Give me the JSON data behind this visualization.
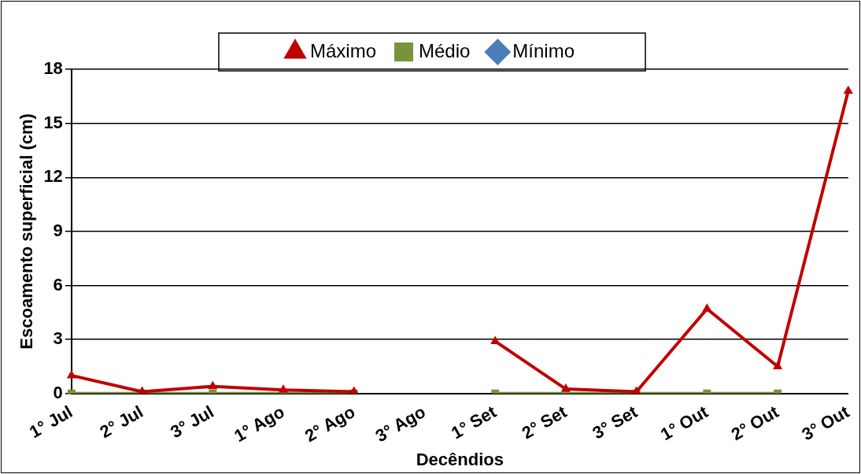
{
  "chart_data": {
    "type": "line",
    "xlabel": "Decêndios",
    "ylabel": "Escoamento superficial (cm)",
    "categories": [
      "1° Jul",
      "2° Jul",
      "3° Jul",
      "1° Ago",
      "2° Ago",
      "3° Ago",
      "1° Set",
      "2° Set",
      "3° Set",
      "1° Out",
      "2° Out",
      "3° Out"
    ],
    "series": [
      {
        "name": "Mínimo",
        "color": "#4a7ebb",
        "marker": "diamond",
        "values": [
          null,
          null,
          null,
          null,
          null,
          null,
          null,
          null,
          null,
          null,
          null,
          null
        ]
      },
      {
        "name": "Médio",
        "color": "#77933c",
        "marker": "square",
        "values": [
          0,
          0,
          0,
          0,
          0,
          null,
          0,
          0,
          0,
          0,
          0,
          null
        ]
      },
      {
        "name": "Máximo",
        "color": "#c00000",
        "marker": "triangle",
        "values": [
          1.0,
          0.1,
          0.4,
          0.2,
          0.1,
          null,
          2.9,
          0.25,
          0.1,
          4.7,
          1.5,
          16.8
        ]
      }
    ],
    "ylim": [
      0,
      18
    ],
    "yticks": [
      0,
      3,
      6,
      9,
      12,
      15,
      18
    ],
    "grid": "y",
    "legend": "top",
    "line_style": "solid"
  }
}
